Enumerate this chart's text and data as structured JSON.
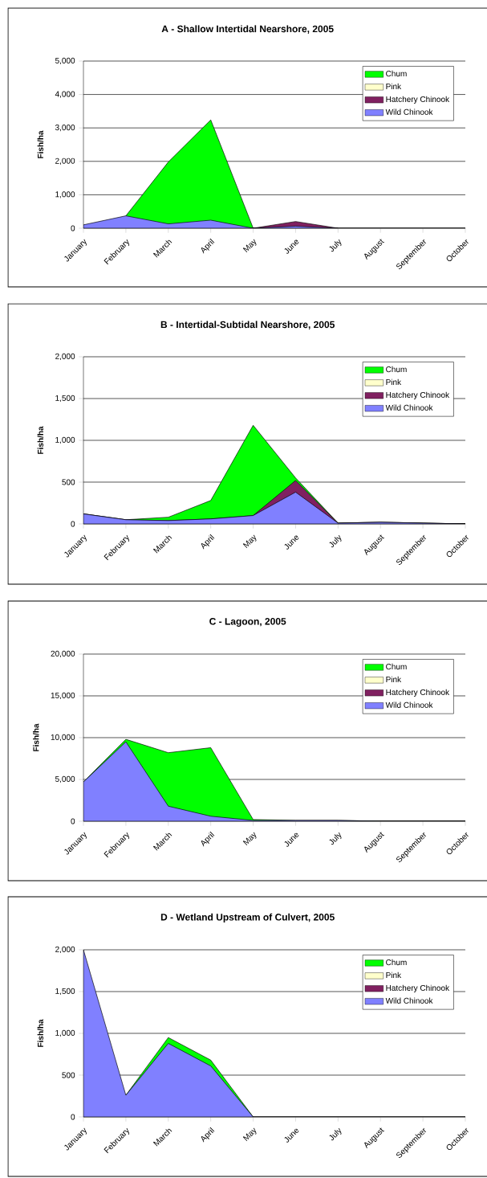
{
  "chart_data": [
    {
      "type": "area",
      "stacked": true,
      "title": "A - Shallow Intertidal Nearshore, 2005",
      "ylabel": "Fish/ha",
      "categories": [
        "January",
        "February",
        "March",
        "April",
        "May",
        "June",
        "July",
        "August",
        "September",
        "October"
      ],
      "series": [
        {
          "name": "Wild Chinook",
          "color": "#8080ff",
          "values": [
            100,
            370,
            130,
            240,
            0,
            60,
            0,
            0,
            0,
            0
          ]
        },
        {
          "name": "Hatchery Chinook",
          "color": "#802060",
          "values": [
            null,
            null,
            null,
            null,
            0,
            140,
            0,
            null,
            null,
            null
          ]
        },
        {
          "name": "Pink",
          "color": "#ffffcc",
          "values": [
            null,
            null,
            null,
            null,
            null,
            null,
            null,
            null,
            null,
            null
          ]
        },
        {
          "name": "Chum",
          "color": "#00ff00",
          "values": [
            null,
            0,
            1850,
            3000,
            0,
            null,
            null,
            null,
            null,
            null
          ]
        }
      ],
      "ylim": [
        0,
        5000
      ],
      "yticks": [
        0,
        {
          "value": 1000,
          "label": "1,000"
        },
        {
          "value": 2000,
          "label": "2,000"
        },
        {
          "value": 3000,
          "label": "3,000"
        },
        {
          "value": 4000,
          "label": "4,000"
        },
        {
          "value": 5000,
          "label": "5,000"
        }
      ],
      "grid": "y",
      "legend": "top right"
    },
    {
      "type": "area",
      "stacked": true,
      "title": "B - Intertidal-Subtidal Nearshore, 2005",
      "ylabel": "Fish/ha",
      "categories": [
        "January",
        "February",
        "March",
        "April",
        "May",
        "June",
        "July",
        "August",
        "September",
        "October"
      ],
      "series": [
        {
          "name": "Wild Chinook",
          "color": "#8080ff",
          "values": [
            120,
            50,
            40,
            60,
            100,
            380,
            10,
            20,
            10,
            0
          ]
        },
        {
          "name": "Hatchery Chinook",
          "color": "#802060",
          "values": [
            0,
            0,
            0,
            0,
            0,
            140,
            0,
            0,
            0,
            0
          ]
        },
        {
          "name": "Pink",
          "color": "#ffffcc",
          "values": [
            null,
            null,
            null,
            null,
            null,
            null,
            null,
            null,
            null,
            null
          ]
        },
        {
          "name": "Chum",
          "color": "#00ff00",
          "values": [
            0,
            0,
            40,
            220,
            1080,
            30,
            0,
            0,
            0,
            0
          ]
        }
      ],
      "ylim": [
        0,
        2000
      ],
      "yticks": [
        0,
        500,
        {
          "value": 1000,
          "label": "1,000"
        },
        {
          "value": 1500,
          "label": "1,500"
        },
        {
          "value": 2000,
          "label": "2,000"
        }
      ],
      "grid": "y",
      "legend": "top right"
    },
    {
      "type": "area",
      "stacked": true,
      "title": "C - Lagoon, 2005",
      "ylabel": "Fish/ha",
      "categories": [
        "January",
        "February",
        "March",
        "April",
        "May",
        "June",
        "July",
        "August",
        "September",
        "October"
      ],
      "series": [
        {
          "name": "Wild Chinook",
          "color": "#8080ff",
          "values": [
            4700,
            9500,
            1800,
            600,
            100,
            100,
            100,
            0,
            0,
            0
          ]
        },
        {
          "name": "Hatchery Chinook",
          "color": "#802060",
          "values": [
            null,
            null,
            null,
            null,
            null,
            null,
            null,
            null,
            null,
            null
          ]
        },
        {
          "name": "Pink",
          "color": "#ffffcc",
          "values": [
            null,
            null,
            null,
            null,
            null,
            null,
            null,
            null,
            null,
            null
          ]
        },
        {
          "name": "Chum",
          "color": "#00ff00",
          "values": [
            0,
            300,
            6400,
            8200,
            100,
            0,
            0,
            0,
            0,
            0
          ]
        }
      ],
      "ylim": [
        0,
        20000
      ],
      "yticks": [
        0,
        {
          "value": 5000,
          "label": "5,000"
        },
        {
          "value": 10000,
          "label": "10,000"
        },
        {
          "value": 15000,
          "label": "15,000"
        },
        {
          "value": 20000,
          "label": "20,000"
        }
      ],
      "grid": "y",
      "legend": "top right"
    },
    {
      "type": "area",
      "stacked": true,
      "title": "D - Wetland Upstream of Culvert, 2005",
      "ylabel": "Fish/ha",
      "categories": [
        "January",
        "February",
        "March",
        "April",
        "May",
        "June",
        "July",
        "August",
        "September",
        "October"
      ],
      "series": [
        {
          "name": "Wild Chinook",
          "color": "#8080ff",
          "values": [
            2000,
            260,
            880,
            610,
            0,
            0,
            0,
            0,
            0,
            0
          ]
        },
        {
          "name": "Hatchery Chinook",
          "color": "#802060",
          "values": [
            null,
            null,
            null,
            null,
            null,
            null,
            null,
            null,
            null,
            null
          ]
        },
        {
          "name": "Pink",
          "color": "#ffffcc",
          "values": [
            null,
            null,
            null,
            null,
            null,
            null,
            null,
            null,
            null,
            null
          ]
        },
        {
          "name": "Chum",
          "color": "#00ff00",
          "values": [
            null,
            0,
            70,
            70,
            0,
            null,
            null,
            null,
            null,
            null
          ]
        }
      ],
      "ylim": [
        0,
        2000
      ],
      "yticks": [
        0,
        500,
        {
          "value": 1000,
          "label": "1,000"
        },
        {
          "value": 1500,
          "label": "1,500"
        },
        {
          "value": 2000,
          "label": "2,000"
        }
      ],
      "grid": "y",
      "legend": "top right"
    }
  ]
}
